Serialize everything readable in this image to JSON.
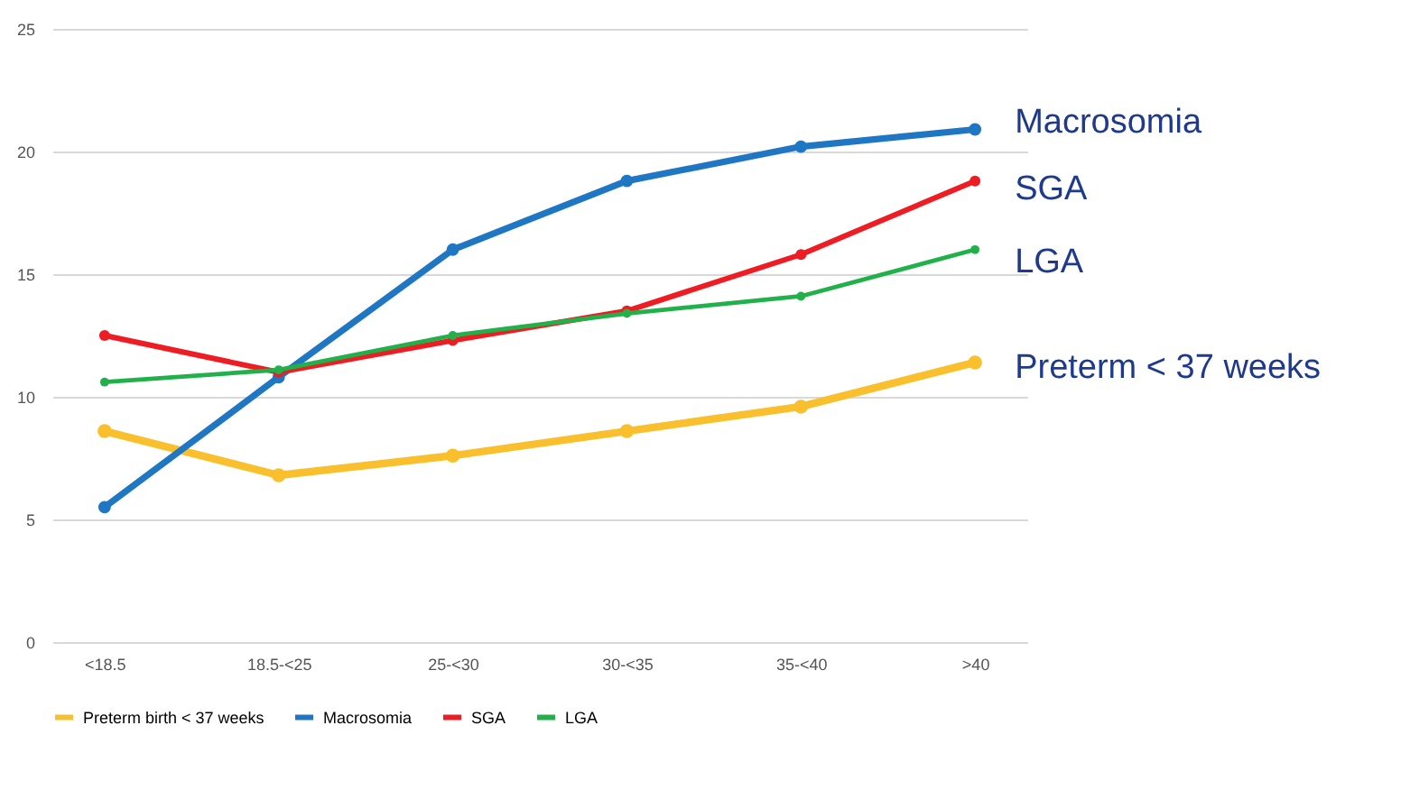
{
  "chart_data": {
    "type": "line",
    "categories": [
      "<18.5",
      "18.5-<25",
      "25-<30",
      "30-<35",
      "35-<40",
      ">40"
    ],
    "series": [
      {
        "name": "Preterm birth < 37 weeks",
        "color": "#f9bf2c",
        "values": [
          8.6,
          6.8,
          7.6,
          8.6,
          9.6,
          11.4
        ]
      },
      {
        "name": "Macrosomia",
        "color": "#1f77c4",
        "values": [
          5.5,
          10.8,
          16.0,
          18.8,
          20.2,
          20.9
        ]
      },
      {
        "name": "SGA",
        "color": "#ee1d23",
        "values": [
          12.5,
          11.0,
          12.3,
          13.5,
          15.8,
          18.8
        ]
      },
      {
        "name": "LGA",
        "color": "#22b04b",
        "values": [
          10.6,
          11.1,
          12.5,
          13.4,
          14.1,
          16.0
        ]
      }
    ],
    "annotations": [
      {
        "text": "Macrosomia",
        "x": ">40",
        "y": 21.2
      },
      {
        "text": "SGA",
        "x": ">40",
        "y": 18.5
      },
      {
        "text": "LGA",
        "x": ">40",
        "y": 15.5
      },
      {
        "text": "Preterm < 37 weeks",
        "x": ">40",
        "y": 11.2
      }
    ],
    "ylim": [
      0,
      25
    ],
    "yticks": [
      0,
      5,
      10,
      15,
      20,
      25
    ],
    "grid": "y",
    "legend": "bottom",
    "marker": "circle",
    "line_style": "solid"
  }
}
